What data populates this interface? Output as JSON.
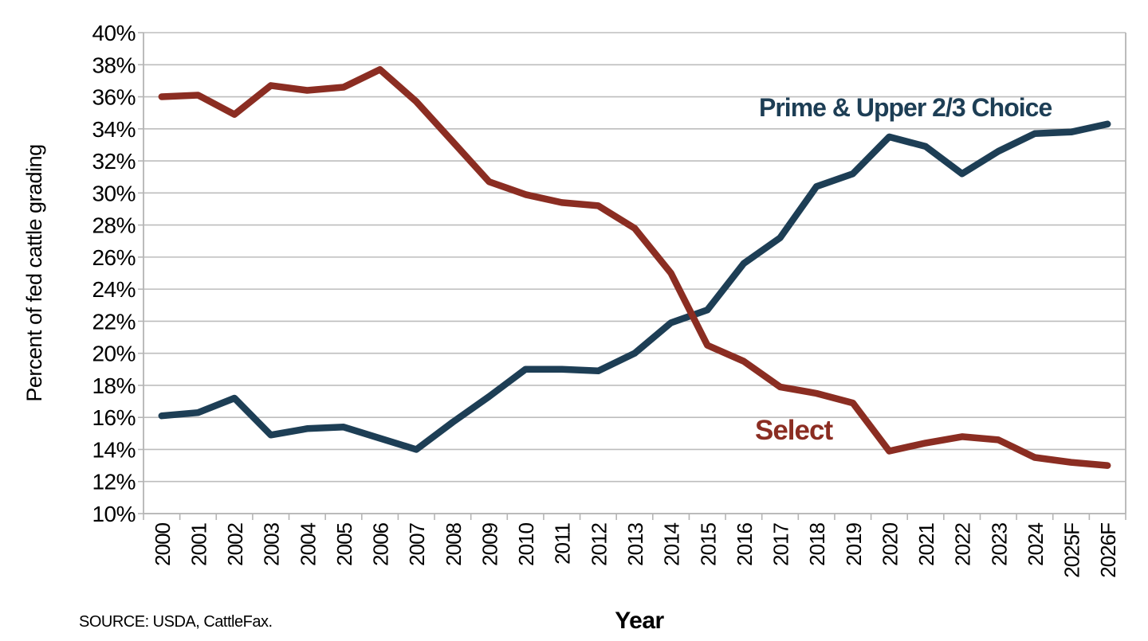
{
  "chart_data": {
    "type": "line",
    "title": "",
    "categories": [
      "2000",
      "2001",
      "2002",
      "2003",
      "2004",
      "2005",
      "2006",
      "2007",
      "2008",
      "2009",
      "2010",
      "2011",
      "2012",
      "2013",
      "2014",
      "2015",
      "2016",
      "2017",
      "2018",
      "2019",
      "2020",
      "2021",
      "2022",
      "2023",
      "2024",
      "2025F",
      "2026F"
    ],
    "series": [
      {
        "name": "Prime & Upper 2/3 Choice",
        "color": "#1D3E55",
        "values": [
          16.1,
          16.3,
          17.2,
          14.9,
          15.3,
          15.4,
          14.7,
          14.0,
          15.7,
          17.3,
          19.0,
          19.0,
          18.9,
          20.0,
          21.9,
          22.7,
          25.6,
          27.2,
          30.4,
          31.2,
          33.5,
          32.9,
          31.2,
          32.6,
          33.7,
          33.8,
          34.3
        ]
      },
      {
        "name": "Select",
        "color": "#8B2D22",
        "values": [
          36.0,
          36.1,
          34.9,
          36.7,
          36.4,
          36.6,
          37.7,
          35.7,
          33.2,
          30.7,
          29.9,
          29.4,
          29.2,
          27.8,
          25.0,
          20.5,
          19.5,
          17.9,
          17.5,
          16.9,
          13.9,
          14.4,
          14.8,
          14.6,
          13.5,
          13.2,
          13.0
        ]
      }
    ],
    "xlabel": "Year",
    "ylabel": "Percent of fed cattle grading",
    "ylim": [
      10,
      40
    ],
    "ytick_step": 2,
    "ytick_suffix": "%",
    "grid": "horizontal-only",
    "legend_position": "inline-labels",
    "source": "SOURCE: USDA, CattleFax.",
    "gridline_color": "#BDBDBD"
  }
}
